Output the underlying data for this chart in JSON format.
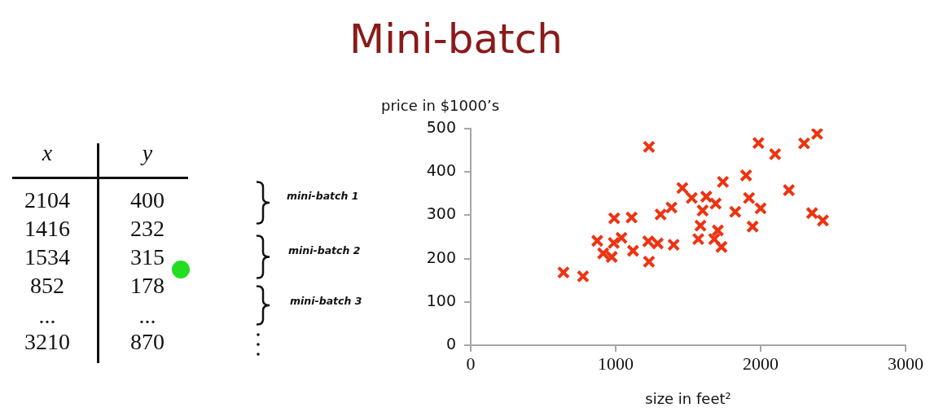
{
  "chart_data": [
    {
      "type": "other",
      "title": "Mini-batch",
      "annotations": [
        "x",
        "y",
        "2104",
        "400",
        "1416",
        "232",
        "1534",
        "315",
        "852",
        "178",
        "...",
        "...",
        "3210",
        "870",
        "mini-batch 1",
        "mini-batch 2",
        "mini-batch 3"
      ]
    },
    {
      "type": "scatter",
      "xlabel": "size in feet²",
      "ylabel": "price in $1000’s",
      "color": "#ee3311",
      "marker": "cross",
      "x": [
        640,
        775,
        873,
        914,
        973,
        987,
        990,
        1040,
        1110,
        1120,
        1225,
        1230,
        1230,
        1290,
        1310,
        1385,
        1400,
        1460,
        1525,
        1570,
        1585,
        1600,
        1625,
        1680,
        1690,
        1705,
        1730,
        1740,
        1825,
        1900,
        1920,
        1945,
        1985,
        2000,
        2100,
        2195,
        2300,
        2355,
        2390,
        2430
      ],
      "values": [
        168,
        159,
        241,
        212,
        204,
        236,
        293,
        248,
        295,
        218,
        240,
        458,
        193,
        235,
        302,
        318,
        232,
        363,
        340,
        245,
        276,
        311,
        343,
        245,
        327,
        265,
        227,
        377,
        308,
        392,
        340,
        274,
        467,
        316,
        441,
        358,
        466,
        305,
        488,
        288
      ],
      "xlim": [
        0,
        3000
      ],
      "ylim": [
        0,
        500
      ],
      "xticks": [
        0,
        1000,
        2000,
        3000
      ],
      "yticks": [
        0,
        100,
        200,
        300,
        400,
        500
      ]
    }
  ]
}
